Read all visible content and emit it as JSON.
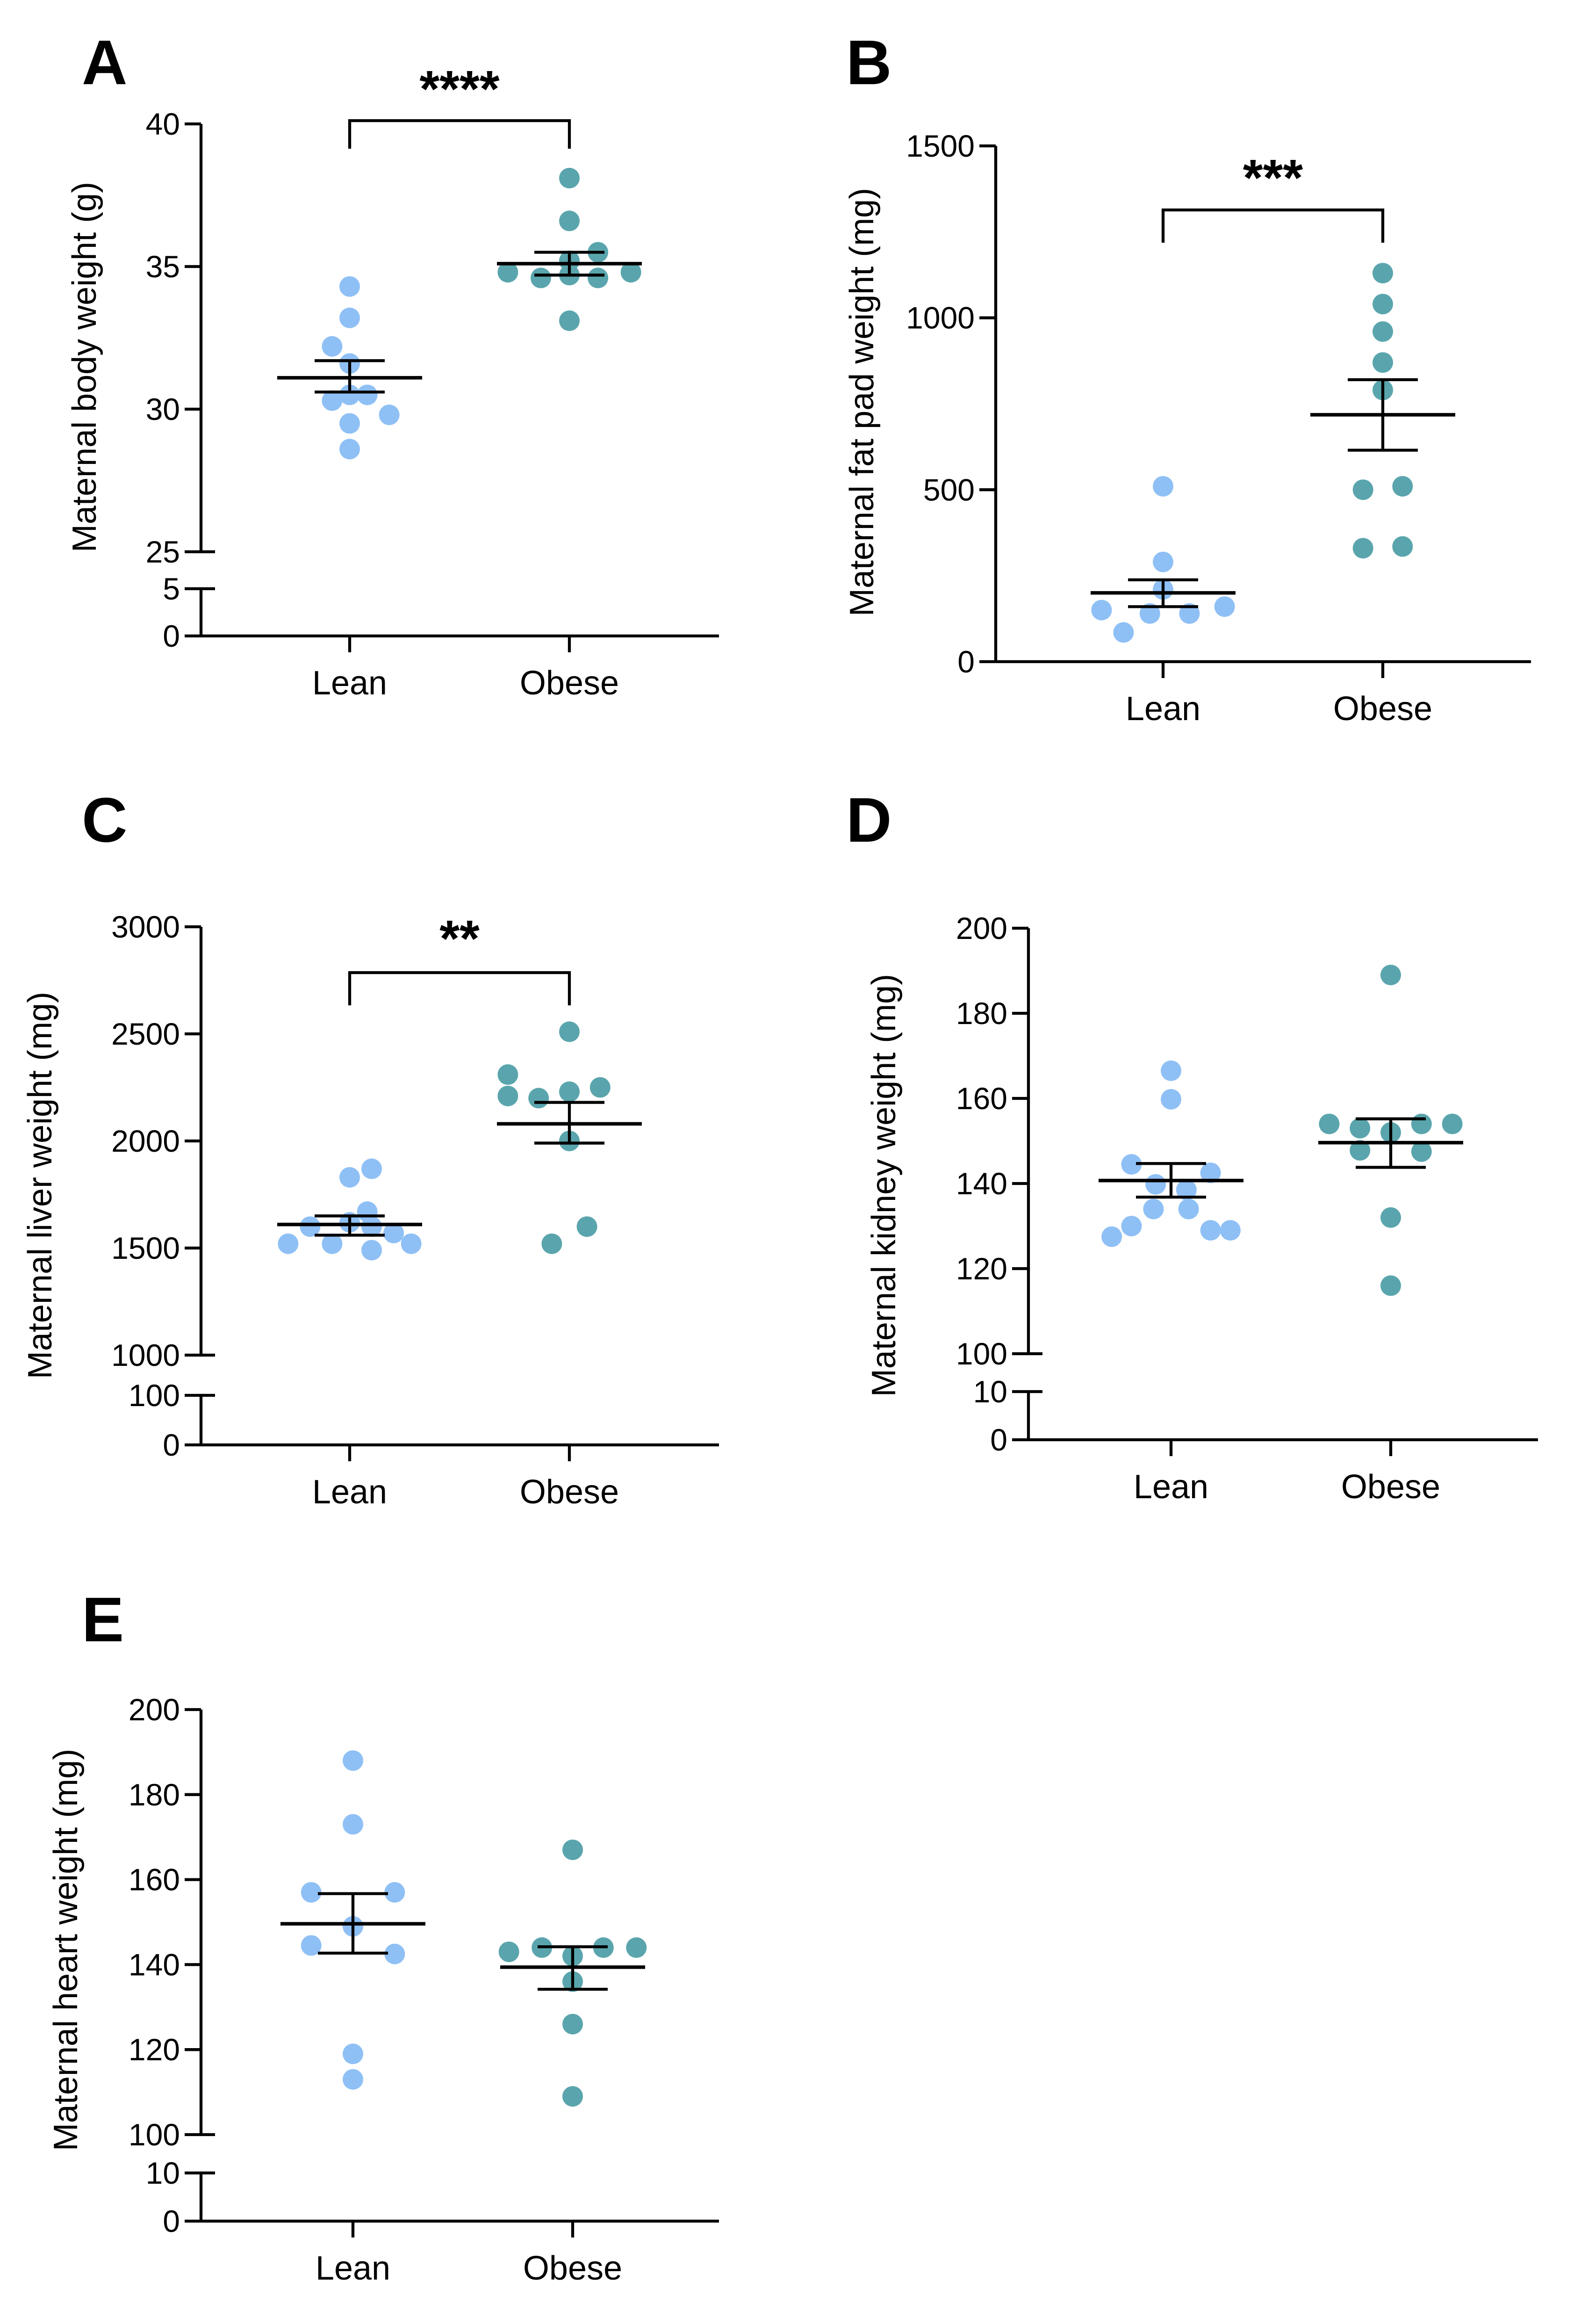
{
  "colors": {
    "lean": "#8fc0f5",
    "obese": "#5aa5ad",
    "axis": "#000000"
  },
  "chart_data": [
    {
      "id": "A",
      "type": "scatter",
      "letter": "A",
      "ylabel": "Maternal body weight (g)",
      "categories": [
        "Lean",
        "Obese"
      ],
      "y_upper": {
        "range": [
          25,
          40
        ],
        "ticks": [
          25,
          30,
          35,
          40
        ]
      },
      "y_lower": {
        "range": [
          0,
          5
        ],
        "ticks": [
          0,
          5
        ]
      },
      "series": [
        {
          "name": "Lean",
          "points": [
            [
              0,
              34.3
            ],
            [
              -0.08,
              32.2
            ],
            [
              0,
              33.2
            ],
            [
              0,
              31.6
            ],
            [
              -0.08,
              30.3
            ],
            [
              0,
              30.5
            ],
            [
              0.08,
              30.5
            ],
            [
              0.18,
              29.8
            ],
            [
              0,
              29.5
            ],
            [
              0,
              28.6
            ]
          ],
          "mean": 31.1,
          "sem_low": 30.6,
          "sem_high": 31.7
        },
        {
          "name": "Obese",
          "points": [
            [
              0,
              38.1
            ],
            [
              0,
              36.6
            ],
            [
              0,
              35.2
            ],
            [
              0.13,
              35.5
            ],
            [
              -0.28,
              34.8
            ],
            [
              -0.13,
              34.6
            ],
            [
              0,
              34.7
            ],
            [
              0.13,
              34.6
            ],
            [
              0.28,
              34.8
            ],
            [
              0,
              33.1
            ]
          ],
          "mean": 35.1,
          "sem_low": 34.7,
          "sem_high": 35.5
        }
      ],
      "significance": "****"
    },
    {
      "id": "B",
      "type": "scatter",
      "letter": "B",
      "ylabel": "Maternal fat pad weight (mg)",
      "categories": [
        "Lean",
        "Obese"
      ],
      "y_single": {
        "range": [
          0,
          1500
        ],
        "ticks": [
          0,
          500,
          1000,
          1500
        ]
      },
      "series": [
        {
          "name": "Lean",
          "points": [
            [
              0,
              510
            ],
            [
              0,
              290
            ],
            [
              0,
              210
            ],
            [
              -0.28,
              150
            ],
            [
              -0.06,
              140
            ],
            [
              0.12,
              140
            ],
            [
              0.28,
              160
            ],
            [
              -0.18,
              85
            ]
          ],
          "mean": 200,
          "sem_low": 160,
          "sem_high": 238
        },
        {
          "name": "Obese",
          "points": [
            [
              0,
              1130
            ],
            [
              0,
              1040
            ],
            [
              0,
              960
            ],
            [
              0,
              870
            ],
            [
              0,
              790
            ],
            [
              -0.09,
              500
            ],
            [
              0.09,
              510
            ],
            [
              -0.09,
              330
            ],
            [
              0.09,
              335
            ]
          ],
          "mean": 718,
          "sem_low": 615,
          "sem_high": 820
        }
      ],
      "significance": "***"
    },
    {
      "id": "C",
      "type": "scatter",
      "letter": "C",
      "ylabel": "Maternal liver weight (mg)",
      "categories": [
        "Lean",
        "Obese"
      ],
      "y_upper": {
        "range": [
          1000,
          3000
        ],
        "ticks": [
          1000,
          1500,
          2000,
          2500,
          3000
        ]
      },
      "y_lower": {
        "range": [
          0,
          100
        ],
        "ticks": [
          0,
          100
        ]
      },
      "series": [
        {
          "name": "Lean",
          "points": [
            [
              0.1,
              1870
            ],
            [
              0,
              1830
            ],
            [
              0.08,
              1670
            ],
            [
              -0.28,
              1520
            ],
            [
              -0.18,
              1600
            ],
            [
              -0.08,
              1520
            ],
            [
              0,
              1620
            ],
            [
              0.1,
              1600
            ],
            [
              0.2,
              1570
            ],
            [
              0.28,
              1520
            ],
            [
              0.1,
              1490
            ]
          ],
          "mean": 1610,
          "sem_low": 1560,
          "sem_high": 1650
        },
        {
          "name": "Obese",
          "points": [
            [
              0,
              2510
            ],
            [
              -0.28,
              2310
            ],
            [
              -0.28,
              2210
            ],
            [
              -0.14,
              2200
            ],
            [
              0,
              2230
            ],
            [
              0.14,
              2250
            ],
            [
              0,
              2000
            ],
            [
              0.08,
              1600
            ],
            [
              -0.08,
              1520
            ]
          ],
          "mean": 2080,
          "sem_low": 1990,
          "sem_high": 2180
        }
      ],
      "significance": "**"
    },
    {
      "id": "D",
      "type": "scatter",
      "letter": "D",
      "ylabel": "Maternal kidney weight (mg)",
      "categories": [
        "Lean",
        "Obese"
      ],
      "y_upper": {
        "range": [
          100,
          200
        ],
        "ticks": [
          100,
          120,
          140,
          160,
          180,
          200
        ]
      },
      "y_lower": {
        "range": [
          0,
          10
        ],
        "ticks": [
          0,
          10
        ]
      },
      "series": [
        {
          "name": "Lean",
          "points": [
            [
              0,
              166.5
            ],
            [
              0,
              159.8
            ],
            [
              -0.18,
              144.5
            ],
            [
              0.18,
              142.5
            ],
            [
              -0.07,
              139.8
            ],
            [
              0.07,
              138.5
            ],
            [
              -0.08,
              134
            ],
            [
              0.08,
              134
            ],
            [
              -0.18,
              130
            ],
            [
              0.18,
              129
            ],
            [
              -0.27,
              127.5
            ],
            [
              0.27,
              129
            ]
          ],
          "mean": 140.7,
          "sem_low": 136.8,
          "sem_high": 144.7
        },
        {
          "name": "Obese",
          "points": [
            [
              0,
              189
            ],
            [
              -0.28,
              154
            ],
            [
              -0.14,
              153
            ],
            [
              0,
              152
            ],
            [
              0.14,
              154
            ],
            [
              0.28,
              154
            ],
            [
              -0.14,
              147.8
            ],
            [
              0.14,
              147.5
            ],
            [
              0,
              132
            ],
            [
              0,
              116
            ]
          ],
          "mean": 149.6,
          "sem_low": 143.8,
          "sem_high": 155.2
        }
      ],
      "significance": ""
    },
    {
      "id": "E",
      "type": "scatter",
      "letter": "E",
      "ylabel": "Maternal heart weight (mg)",
      "categories": [
        "Lean",
        "Obese"
      ],
      "y_upper": {
        "range": [
          100,
          200
        ],
        "ticks": [
          100,
          120,
          140,
          160,
          180,
          200
        ]
      },
      "y_lower": {
        "range": [
          0,
          10
        ],
        "ticks": [
          0,
          10
        ]
      },
      "series": [
        {
          "name": "Lean",
          "points": [
            [
              0,
              188
            ],
            [
              0,
              173
            ],
            [
              -0.19,
              157
            ],
            [
              0.19,
              157
            ],
            [
              0,
              149
            ],
            [
              -0.19,
              144.5
            ],
            [
              0.19,
              142.5
            ],
            [
              0,
              119
            ],
            [
              0,
              113
            ]
          ],
          "mean": 149.6,
          "sem_low": 142.7,
          "sem_high": 156.7
        },
        {
          "name": "Obese",
          "points": [
            [
              0,
              167
            ],
            [
              -0.29,
              143
            ],
            [
              -0.14,
              144
            ],
            [
              0,
              142
            ],
            [
              0.14,
              144
            ],
            [
              0.29,
              144
            ],
            [
              0,
              136
            ],
            [
              0,
              126
            ],
            [
              0,
              109
            ]
          ],
          "mean": 139.4,
          "sem_low": 134.2,
          "sem_high": 144.2
        }
      ],
      "significance": ""
    }
  ]
}
